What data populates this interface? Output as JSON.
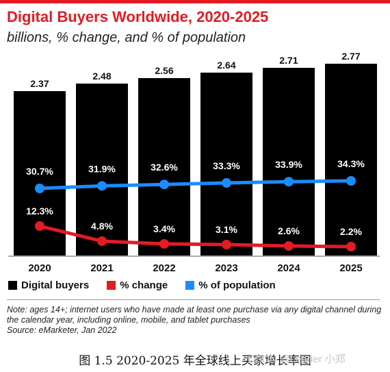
{
  "title": "Digital Buyers Worldwide, 2020-2025",
  "subtitle": "billions, % change, and % of population",
  "colors": {
    "accent": "#e31b23",
    "bars": "#000000",
    "pct_change": "#e31b23",
    "pct_population": "#1a8cff"
  },
  "chart_data": {
    "type": "bar",
    "categories": [
      "2020",
      "2021",
      "2022",
      "2023",
      "2024",
      "2025"
    ],
    "series": [
      {
        "name": "Digital buyers",
        "type": "bar",
        "values": [
          2.37,
          2.48,
          2.56,
          2.64,
          2.71,
          2.77
        ],
        "labels": [
          "2.37",
          "2.48",
          "2.56",
          "2.64",
          "2.71",
          "2.77"
        ]
      },
      {
        "name": "% change",
        "type": "line",
        "values": [
          12.3,
          4.8,
          3.4,
          3.1,
          2.6,
          2.2
        ],
        "labels": [
          "12.3%",
          "4.8%",
          "3.4%",
          "3.1%",
          "2.6%",
          "2.2%"
        ]
      },
      {
        "name": "% of population",
        "type": "line",
        "values": [
          30.7,
          31.9,
          32.6,
          33.3,
          33.9,
          34.3
        ],
        "labels": [
          "30.7%",
          "31.9%",
          "32.6%",
          "33.3%",
          "33.9%",
          "34.3%"
        ]
      }
    ],
    "legend_position": "bottom-left"
  },
  "note": "Note: ages 14+; internet users who have made at least one purchase via any digital channel during the calendar year, including online, mobile, and tablet purchases",
  "source": "Source: eMarketer, Jan 2022",
  "caption": "图 1.5 2020-2025 年全球线上买家增长率图",
  "watermark": "CSDN @Leader 小郑"
}
